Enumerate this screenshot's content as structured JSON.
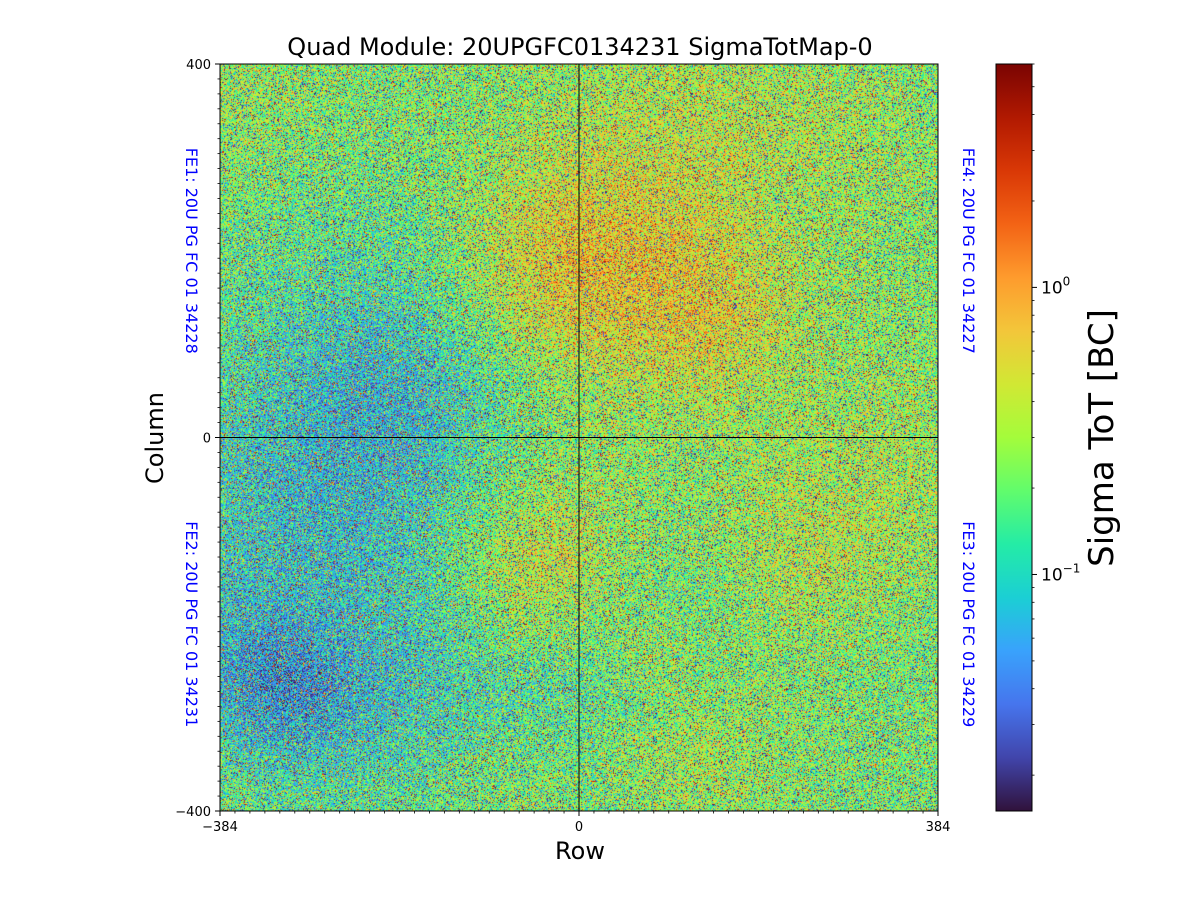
{
  "chart_data": {
    "type": "heatmap",
    "title": "Quad Module: 20UPGFC0134231 SigmaTotMap-0",
    "xlabel": "Row",
    "ylabel": "Column",
    "xlim": [
      -384,
      384
    ],
    "ylim": [
      -400,
      400
    ],
    "x_ticks": [
      {
        "value": -384,
        "label": "−384"
      },
      {
        "value": 0,
        "label": "0"
      },
      {
        "value": 384,
        "label": "384"
      }
    ],
    "y_ticks": [
      {
        "value": 400,
        "label": "400"
      },
      {
        "value": 0,
        "label": "0"
      },
      {
        "value": -400,
        "label": "−400"
      }
    ],
    "divider_lines": {
      "x": 0,
      "y": 0
    },
    "fe_labels": [
      {
        "name": "FE1",
        "text": "FE1: 20U PG FC 01 34228",
        "quadrant": "top-left"
      },
      {
        "name": "FE2",
        "text": "FE2: 20U PG FC 01 34231",
        "quadrant": "bottom-left"
      },
      {
        "name": "FE3",
        "text": "FE3: 20U PG FC 01 34229",
        "quadrant": "bottom-right"
      },
      {
        "name": "FE4",
        "text": "FE4: 20U PG FC 01 34227",
        "quadrant": "top-right"
      }
    ],
    "colorbar": {
      "label": "Sigma ToT [BC]",
      "scale": "log",
      "colormap": "turbo",
      "range": [
        0.015,
        6.0
      ],
      "ticks": [
        {
          "value": 1.0,
          "base": "10",
          "exp": "0"
        },
        {
          "value": 0.1,
          "base": "10",
          "exp": "−1"
        }
      ]
    },
    "pixel_value_summary": {
      "typical_range": [
        0.08,
        1.0
      ],
      "dominant_value": 0.3
    }
  },
  "colors": {
    "fe_label": "#0000ff",
    "turbo_stops": [
      "#30123b",
      "#4145ab",
      "#4675ed",
      "#39a2fc",
      "#1bcfd4",
      "#24eca6",
      "#61fc6c",
      "#a4fc3b",
      "#d1e834",
      "#f3c63a",
      "#fe9b2d",
      "#f36315",
      "#d93806",
      "#b11901",
      "#7a0402"
    ]
  }
}
